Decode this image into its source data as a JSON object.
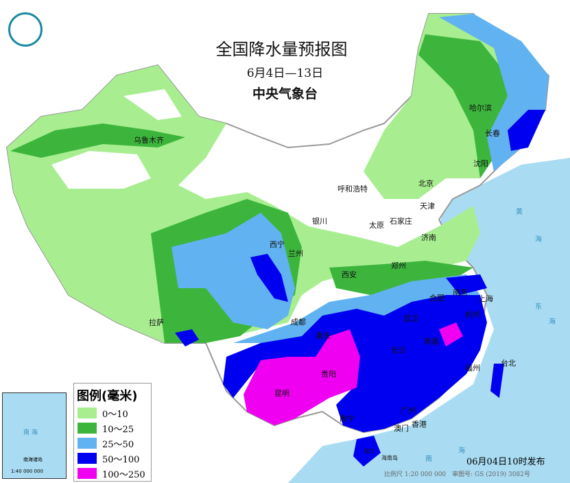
{
  "title": "全国降水量预报图",
  "date_range": "6月4日—13日",
  "issuer": "中央气象台",
  "legend": {
    "title": "图例(毫米)",
    "items": [
      {
        "label": "0～10",
        "color": "#a8ee90"
      },
      {
        "label": "10～25",
        "color": "#3db53d"
      },
      {
        "label": "25～50",
        "color": "#61b2f0"
      },
      {
        "label": "50～100",
        "color": "#0000f0"
      },
      {
        "label": "100～250",
        "color": "#f000f0"
      }
    ]
  },
  "cities": [
    {
      "name": "乌鲁木齐"
    },
    {
      "name": "哈尔滨"
    },
    {
      "name": "长春"
    },
    {
      "name": "沈阳"
    },
    {
      "name": "北京"
    },
    {
      "name": "天津"
    },
    {
      "name": "呼和浩特"
    },
    {
      "name": "银川"
    },
    {
      "name": "太原"
    },
    {
      "name": "石家庄"
    },
    {
      "name": "济南"
    },
    {
      "name": "西宁"
    },
    {
      "name": "兰州"
    },
    {
      "name": "西安"
    },
    {
      "name": "郑州"
    },
    {
      "name": "合肥"
    },
    {
      "name": "南京"
    },
    {
      "name": "上海"
    },
    {
      "name": "拉萨"
    },
    {
      "name": "成都"
    },
    {
      "name": "重庆"
    },
    {
      "name": "武汉"
    },
    {
      "name": "杭州"
    },
    {
      "name": "长沙"
    },
    {
      "name": "南昌"
    },
    {
      "name": "贵阳"
    },
    {
      "name": "昆明"
    },
    {
      "name": "福州"
    },
    {
      "name": "台北"
    },
    {
      "name": "南宁"
    },
    {
      "name": "广州"
    },
    {
      "name": "香港"
    },
    {
      "name": "澳门"
    },
    {
      "name": "海口"
    },
    {
      "name": "海南岛"
    }
  ],
  "seas": [
    "黄",
    "海",
    "东",
    "海",
    "南",
    "海"
  ],
  "inset": {
    "sea": "南 海",
    "label": "南海诸岛",
    "scale": "1:40 000 000"
  },
  "published": "06月04日10时发布",
  "scale_note": "比例尺 1:20 000 000　审图号: GS (2019) 3082号"
}
